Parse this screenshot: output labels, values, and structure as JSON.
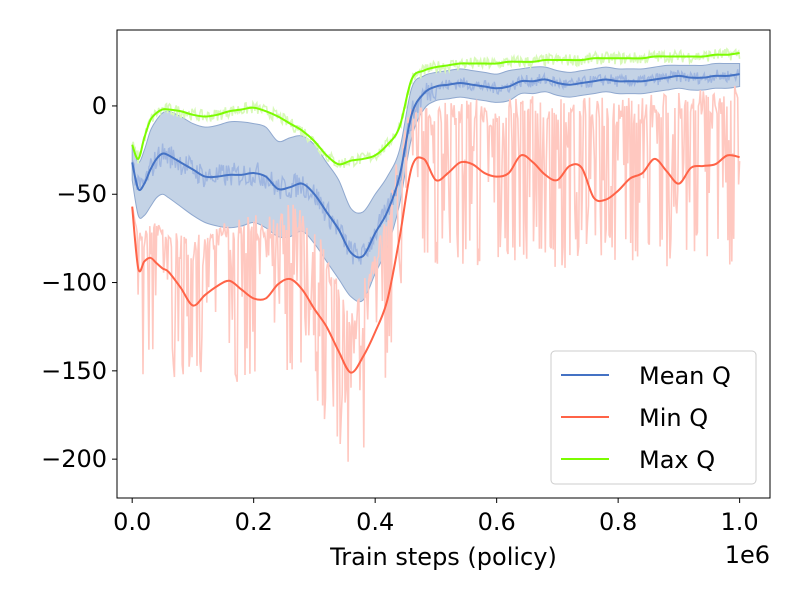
{
  "chart_data": {
    "type": "line",
    "title": "",
    "xlabel": "Train steps (policy)",
    "x_offset_text": "1e6",
    "ylabel": "",
    "xlim": [
      -0.025,
      1.05
    ],
    "ylim": [
      -222,
      43
    ],
    "xticks": [
      0.0,
      0.2,
      0.4,
      0.6,
      0.8,
      1.0
    ],
    "xtick_labels": [
      "0.0",
      "0.2",
      "0.4",
      "0.6",
      "0.8",
      "1.0"
    ],
    "yticks": [
      0,
      -50,
      -100,
      -150,
      -200
    ],
    "ytick_labels": [
      "0",
      "−50",
      "−100",
      "−150",
      "−200"
    ],
    "grid": false,
    "legend_position": "lower-right",
    "x": [
      0.0,
      0.01,
      0.02,
      0.03,
      0.04,
      0.05,
      0.06,
      0.08,
      0.1,
      0.12,
      0.14,
      0.16,
      0.18,
      0.2,
      0.22,
      0.24,
      0.26,
      0.28,
      0.3,
      0.32,
      0.34,
      0.36,
      0.38,
      0.4,
      0.42,
      0.44,
      0.46,
      0.48,
      0.5,
      0.52,
      0.54,
      0.56,
      0.58,
      0.6,
      0.62,
      0.64,
      0.66,
      0.68,
      0.7,
      0.72,
      0.74,
      0.76,
      0.78,
      0.8,
      0.82,
      0.84,
      0.86,
      0.88,
      0.9,
      0.92,
      0.94,
      0.96,
      0.98,
      1.0
    ],
    "series": [
      {
        "name": "Mean Q",
        "color": "#4472c4",
        "band_color": "#b0c4de",
        "smoothed": [
          -32,
          -47,
          -44,
          -36,
          -30,
          -27,
          -28,
          -32,
          -36,
          -40,
          -40,
          -39,
          -39,
          -38,
          -40,
          -47,
          -46,
          -44,
          -50,
          -60,
          -70,
          -83,
          -85,
          -72,
          -60,
          -40,
          -5,
          7,
          11,
          12,
          13,
          12,
          11,
          10,
          11,
          14,
          14,
          15,
          13,
          12,
          13,
          14,
          15,
          14,
          14,
          14,
          15,
          16,
          17,
          16,
          16,
          17,
          17,
          18
        ],
        "band_upper": [
          -22,
          -32,
          -25,
          -14,
          -8,
          -4,
          -3,
          -6,
          -10,
          -12,
          -11,
          -9,
          -9,
          -10,
          -12,
          -20,
          -18,
          -17,
          -22,
          -32,
          -42,
          -58,
          -60,
          -50,
          -40,
          -25,
          10,
          17,
          19,
          20,
          21,
          20,
          19,
          18,
          20,
          21,
          22,
          22,
          20,
          19,
          20,
          21,
          22,
          21,
          21,
          21,
          22,
          23,
          23,
          23,
          23,
          24,
          24,
          24
        ],
        "band_lower": [
          -42,
          -62,
          -62,
          -57,
          -52,
          -50,
          -52,
          -57,
          -62,
          -66,
          -68,
          -69,
          -68,
          -66,
          -69,
          -74,
          -74,
          -71,
          -78,
          -88,
          -98,
          -108,
          -110,
          -95,
          -80,
          -56,
          -18,
          -2,
          3,
          4,
          5,
          4,
          3,
          2,
          3,
          7,
          7,
          8,
          6,
          5,
          6,
          7,
          8,
          7,
          7,
          7,
          8,
          9,
          10,
          9,
          9,
          10,
          10,
          11
        ]
      },
      {
        "name": "Min Q",
        "color": "#ff6347",
        "raw_color": "#ffc8c0",
        "smoothed": [
          -57,
          -92,
          -88,
          -86,
          -89,
          -92,
          -94,
          -103,
          -113,
          -107,
          -102,
          -99,
          -104,
          -109,
          -109,
          -101,
          -98,
          -104,
          -115,
          -125,
          -139,
          -151,
          -142,
          -128,
          -110,
          -75,
          -35,
          -30,
          -42,
          -38,
          -32,
          -33,
          -38,
          -40,
          -38,
          -28,
          -32,
          -39,
          -42,
          -34,
          -35,
          -52,
          -53,
          -48,
          -41,
          -38,
          -30,
          -37,
          -44,
          -35,
          -34,
          -33,
          -28,
          -29
        ],
        "raw_min": [
          -57,
          -197,
          -160,
          -140,
          -150,
          -170,
          -160,
          -150,
          -160,
          -170,
          -160,
          -150,
          -160,
          -150,
          -155,
          -160,
          -150,
          -160,
          -170,
          -180,
          -190,
          -210,
          -200,
          -180,
          -150,
          -110,
          -70,
          -90,
          -95,
          -90,
          -95,
          -90,
          -95,
          -92,
          -90,
          -90,
          -88,
          -90,
          -92,
          -93,
          -88,
          -90,
          -85,
          -90,
          -93,
          -88,
          -90,
          -95,
          -96,
          -90,
          -95,
          -98,
          -95,
          -85
        ],
        "raw_max": [
          -57,
          -70,
          -75,
          -65,
          -65,
          -68,
          -72,
          -70,
          -75,
          -70,
          -68,
          -65,
          -62,
          -60,
          -62,
          -60,
          -55,
          -58,
          -70,
          -80,
          -100,
          -115,
          -100,
          -80,
          -60,
          -20,
          0,
          3,
          0,
          3,
          2,
          4,
          3,
          2,
          4,
          5,
          6,
          6,
          4,
          5,
          6,
          5,
          6,
          7,
          6,
          5,
          7,
          7,
          8,
          9,
          9,
          10,
          11,
          12
        ]
      },
      {
        "name": "Max Q",
        "color": "#7cfc00",
        "raw_color": "#d8f9b8",
        "smoothed": [
          -22,
          -30,
          -18,
          -8,
          -4,
          -2,
          -2,
          -3,
          -5,
          -6,
          -5,
          -3,
          -2,
          -1,
          -3,
          -6,
          -10,
          -14,
          -20,
          -28,
          -33,
          -31,
          -30,
          -28,
          -22,
          -12,
          15,
          20,
          22,
          23,
          24,
          24,
          24,
          24,
          25,
          25,
          25,
          26,
          26,
          26,
          26,
          27,
          27,
          27,
          27,
          27,
          28,
          28,
          28,
          28,
          28,
          29,
          29,
          30
        ]
      }
    ]
  }
}
